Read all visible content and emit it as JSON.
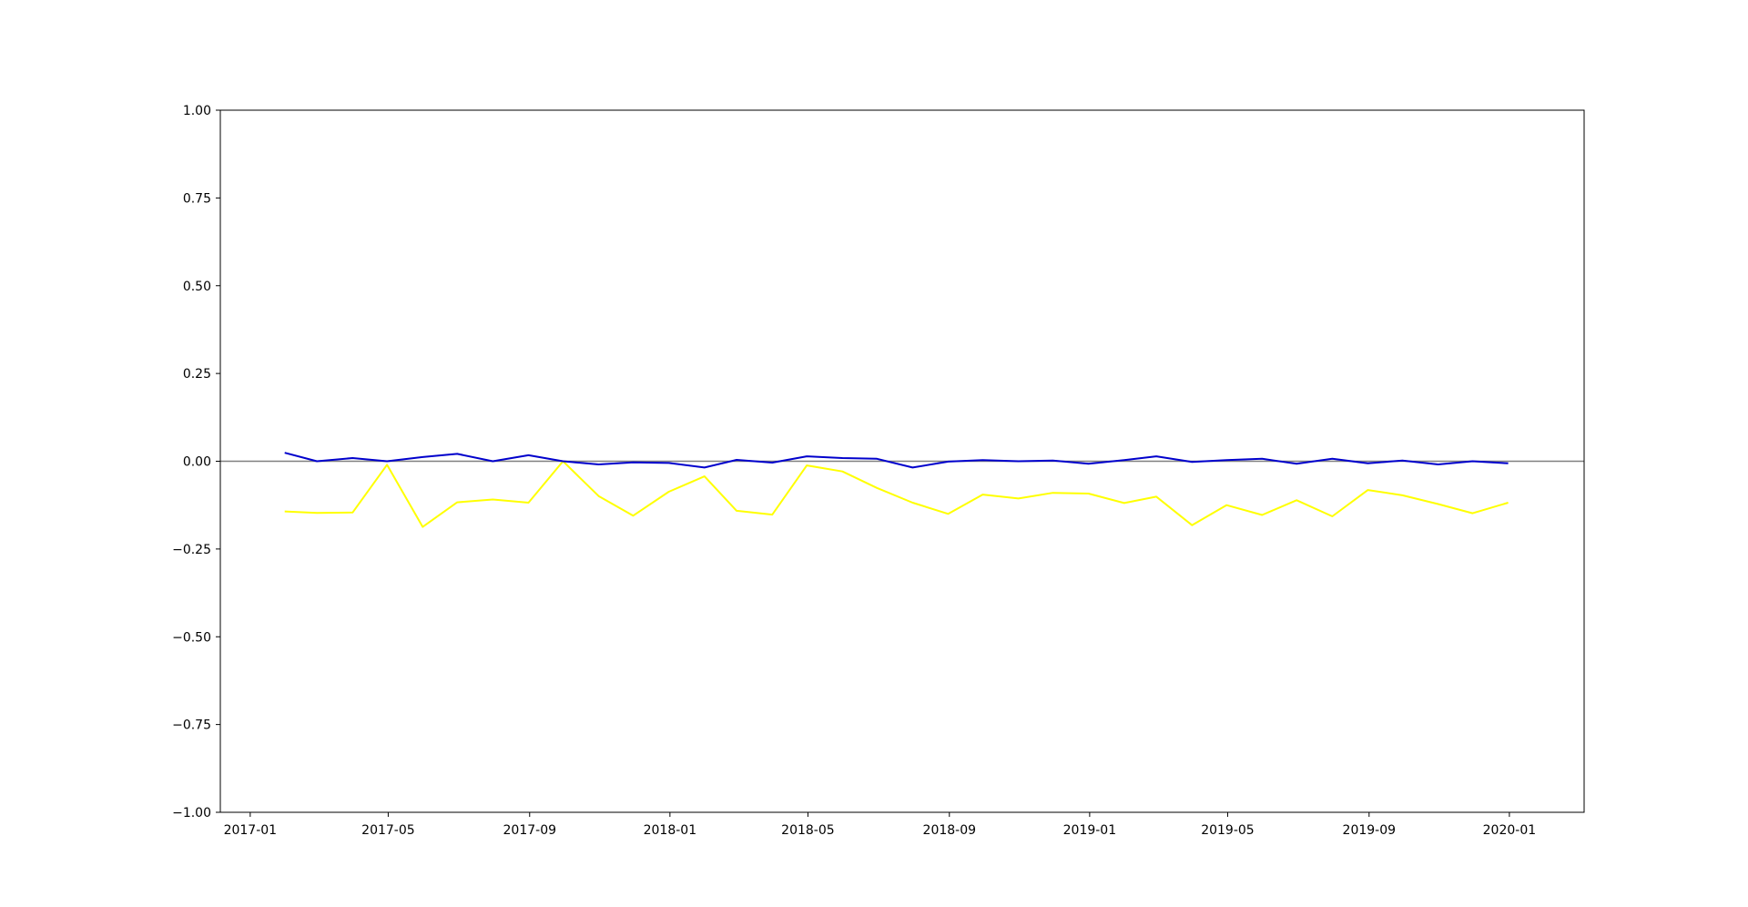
{
  "chart_data": {
    "type": "line",
    "title": "",
    "xlabel": "",
    "ylabel": "",
    "xlim": [
      "2016-12-06",
      "2020-03-06"
    ],
    "ylim": [
      -1.0,
      1.0
    ],
    "grid": false,
    "x_ticks": [
      "2017-01",
      "2017-05",
      "2017-09",
      "2018-01",
      "2018-05",
      "2018-09",
      "2019-01",
      "2019-05",
      "2019-09",
      "2020-01"
    ],
    "y_ticks": [
      "−1.00",
      "−0.75",
      "−0.50",
      "−0.25",
      "0.00",
      "0.25",
      "0.50",
      "0.75",
      "1.00"
    ],
    "reference_line": {
      "y": 0.0,
      "color": "#808080"
    },
    "x": [
      "2017-01-31",
      "2017-02-28",
      "2017-03-31",
      "2017-04-30",
      "2017-05-31",
      "2017-06-30",
      "2017-07-31",
      "2017-08-31",
      "2017-09-30",
      "2017-10-31",
      "2017-11-30",
      "2017-12-31",
      "2018-01-31",
      "2018-02-28",
      "2018-03-31",
      "2018-04-30",
      "2018-05-31",
      "2018-06-30",
      "2018-07-31",
      "2018-08-31",
      "2018-09-30",
      "2018-10-31",
      "2018-11-30",
      "2018-12-31",
      "2019-01-31",
      "2019-02-28",
      "2019-03-31",
      "2019-04-30",
      "2019-05-31",
      "2019-06-30",
      "2019-07-31",
      "2019-08-31",
      "2019-09-30",
      "2019-10-31",
      "2019-11-30",
      "2019-12-31",
      "2020-01-31"
    ],
    "series": [
      {
        "color": "#0000cc",
        "values": [
          0.024,
          0.0,
          0.009,
          0.0,
          0.012,
          0.021,
          0.0,
          0.017,
          0.0,
          -0.009,
          -0.003,
          -0.005,
          -0.018,
          0.004,
          -0.004,
          0.014,
          0.009,
          0.007,
          -0.018,
          -0.001,
          0.003,
          0.0,
          0.002,
          -0.007,
          0.003,
          0.014,
          -0.002,
          0.003,
          0.007,
          -0.007,
          0.007,
          -0.006,
          0.002,
          -0.009,
          0.0,
          -0.006,
          null
        ]
      },
      {
        "color": "#ffff00",
        "values": [
          -0.143,
          -0.147,
          -0.146,
          -0.01,
          -0.187,
          -0.117,
          -0.109,
          -0.118,
          0.0,
          -0.099,
          -0.155,
          -0.087,
          -0.043,
          -0.141,
          -0.152,
          -0.012,
          -0.029,
          -0.076,
          -0.118,
          -0.15,
          -0.095,
          -0.106,
          -0.09,
          -0.092,
          -0.119,
          -0.101,
          -0.182,
          -0.125,
          -0.153,
          -0.111,
          -0.157,
          -0.082,
          -0.097,
          -0.122,
          -0.148,
          -0.118,
          null
        ]
      }
    ]
  }
}
